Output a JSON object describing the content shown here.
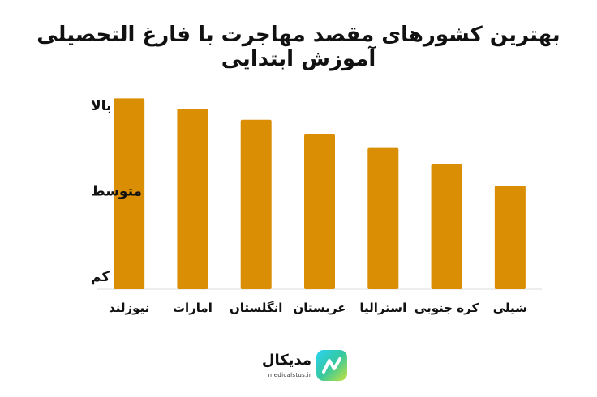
{
  "chart_data": {
    "type": "bar",
    "title": "بهترین کشورهای مقصد مهاجرت با فارغ التحصیلی آموزش ابتدایی",
    "categories": [
      "نیوزلند",
      "امارات",
      "انگلستان",
      "عربستان",
      "استرالیا",
      "کره جنوبی",
      "شیلی"
    ],
    "values": [
      2.08,
      1.96,
      1.83,
      1.66,
      1.5,
      1.31,
      1.06
    ],
    "y_tick_labels": [
      "کم",
      "متوسط",
      "بالا"
    ],
    "y_tick_values": [
      0,
      1,
      2
    ],
    "ylim": [
      -0.15,
      2.15
    ],
    "bar_color": "#d98e04",
    "grid": false,
    "legend": "none"
  },
  "brand": {
    "name": "مدیکال",
    "url": "medicalstus.ir",
    "logo_colors": [
      "#2bd3f3",
      "#35c8a0",
      "#c7e33a"
    ]
  }
}
